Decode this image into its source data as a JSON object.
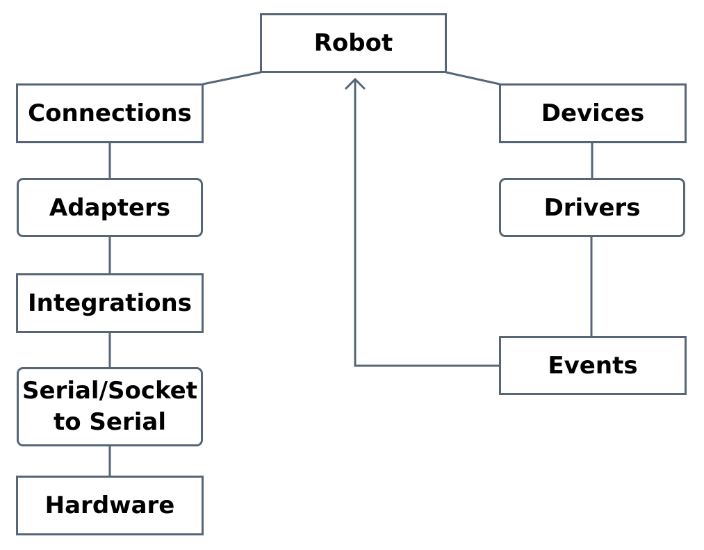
{
  "diagram": {
    "root": {
      "label": "Robot"
    },
    "left_column": [
      {
        "label": "Connections"
      },
      {
        "label": "Adapters"
      },
      {
        "label": "Integrations"
      },
      {
        "label": "Serial/Socket\nto Serial"
      },
      {
        "label": "Hardware"
      }
    ],
    "right_column": [
      {
        "label": "Devices"
      },
      {
        "label": "Drivers"
      },
      {
        "label": "Events"
      }
    ],
    "colors": {
      "stroke": "#566676",
      "text": "#000000",
      "background": "#ffffff"
    }
  }
}
